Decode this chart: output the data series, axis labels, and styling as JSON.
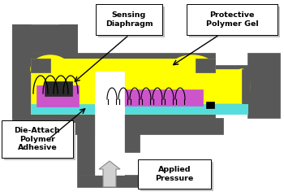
{
  "bg_color": "#ffffff",
  "dark_gray": "#585858",
  "light_gray": "#c0c0c0",
  "yellow": "#ffff00",
  "purple": "#cc55cc",
  "cyan": "#55dddd",
  "black": "#000000",
  "white": "#ffffff",
  "arrow_gray": "#d0d0d0",
  "label_sensing_diaphragm": "Sensing\nDiaphragm",
  "label_protective_polymer": "Protective\nPolymer Gel",
  "label_die_attach": "Die-Attach\nPolymer\nAdhesive",
  "label_applied_pressure": "Applied\nPressure"
}
